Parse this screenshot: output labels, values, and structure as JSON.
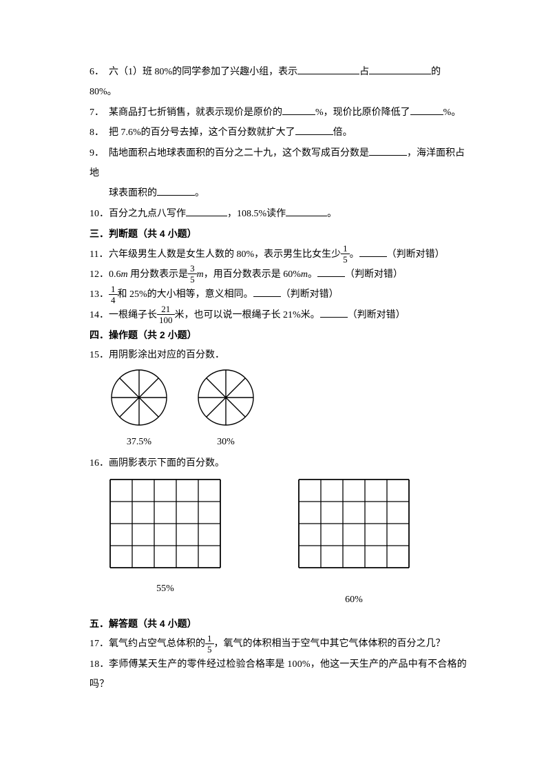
{
  "q6": {
    "num": "6．",
    "t1": "六（1）班 80%的同学参加了兴趣小组，表示",
    "t2": "占",
    "t3": "的 80%。"
  },
  "q7": {
    "num": "7．",
    "t1": "某商品打七折销售，就表示现价是原价的",
    "t2": "%，现价比原价降低了",
    "t3": "%。"
  },
  "q8": {
    "num": "8．",
    "t1": "把 7.6%的百分号去掉，这个百分数就扩大了",
    "t2": "倍。"
  },
  "q9": {
    "num": "9．",
    "t1": "陆地面积占地球表面积的百分之二十九，这个数写成百分数是",
    "t2": "，海洋面积占地",
    "t3": "球表面积的",
    "t4": "。"
  },
  "q10": {
    "num": "10．",
    "t1": "百分之九点八写作",
    "t2": "，108.5%读作",
    "t3": "。"
  },
  "s3": "三．判断题（共 4 小题）",
  "q11": {
    "num": "11．",
    "t1": "六年级男生人数是女生人数的 80%，表示男生比女生少",
    "f_n": "1",
    "f_d": "5",
    "t2": "。",
    "t3": "（判断对错）"
  },
  "q12": {
    "num": "12．",
    "t1": "0.6",
    "m": "m",
    "t2": " 用分数表示是",
    "f_n": "3",
    "f_d": "5",
    "t3": "，用百分数表示是 60%",
    "t4": "。",
    "t5": "（判断对错）"
  },
  "q13": {
    "num": "13．",
    "f_n": "1",
    "f_d": "4",
    "t1": "和 25%的大小相等，意义相同。",
    "t2": "（判断对错）"
  },
  "q14": {
    "num": "14．",
    "t1": "一根绳子长",
    "f_n": "21",
    "f_d": "100",
    "t2": "米，也可以说一根绳子长 21%米。",
    "t3": "（判断对错）"
  },
  "s4": "四．操作题（共 2 小题）",
  "q15": {
    "num": "15．",
    "t1": "用阴影涂出对应的百分数．",
    "label1": "37.5%",
    "label2": "30%",
    "pie": {
      "stroke": "#000000",
      "stroke_width": 1.4,
      "radius": 40,
      "sectors": 8,
      "fill": "none"
    }
  },
  "q16": {
    "num": "16．",
    "t1": "画阴影表示下面的百分数。",
    "label1": "55%",
    "label2": "60%",
    "grid": {
      "rows": 4,
      "cols": 5,
      "cell": 32,
      "stroke": "#000000",
      "stroke_width": 1.3,
      "stroke_outer": 1.8
    }
  },
  "s5": "五．解答题（共 4 小题）",
  "q17": {
    "num": "17．",
    "t1": "氧气约占空气总体积的",
    "f_n": "1",
    "f_d": "5",
    "t2": "，氧气的体积相当于空气中其它气体体积的百分之几？"
  },
  "q18": {
    "num": "18．",
    "t1": "李师傅某天生产的零件经过检验合格率是 100%，他这一天生产的产品中有不合格的吗？"
  }
}
